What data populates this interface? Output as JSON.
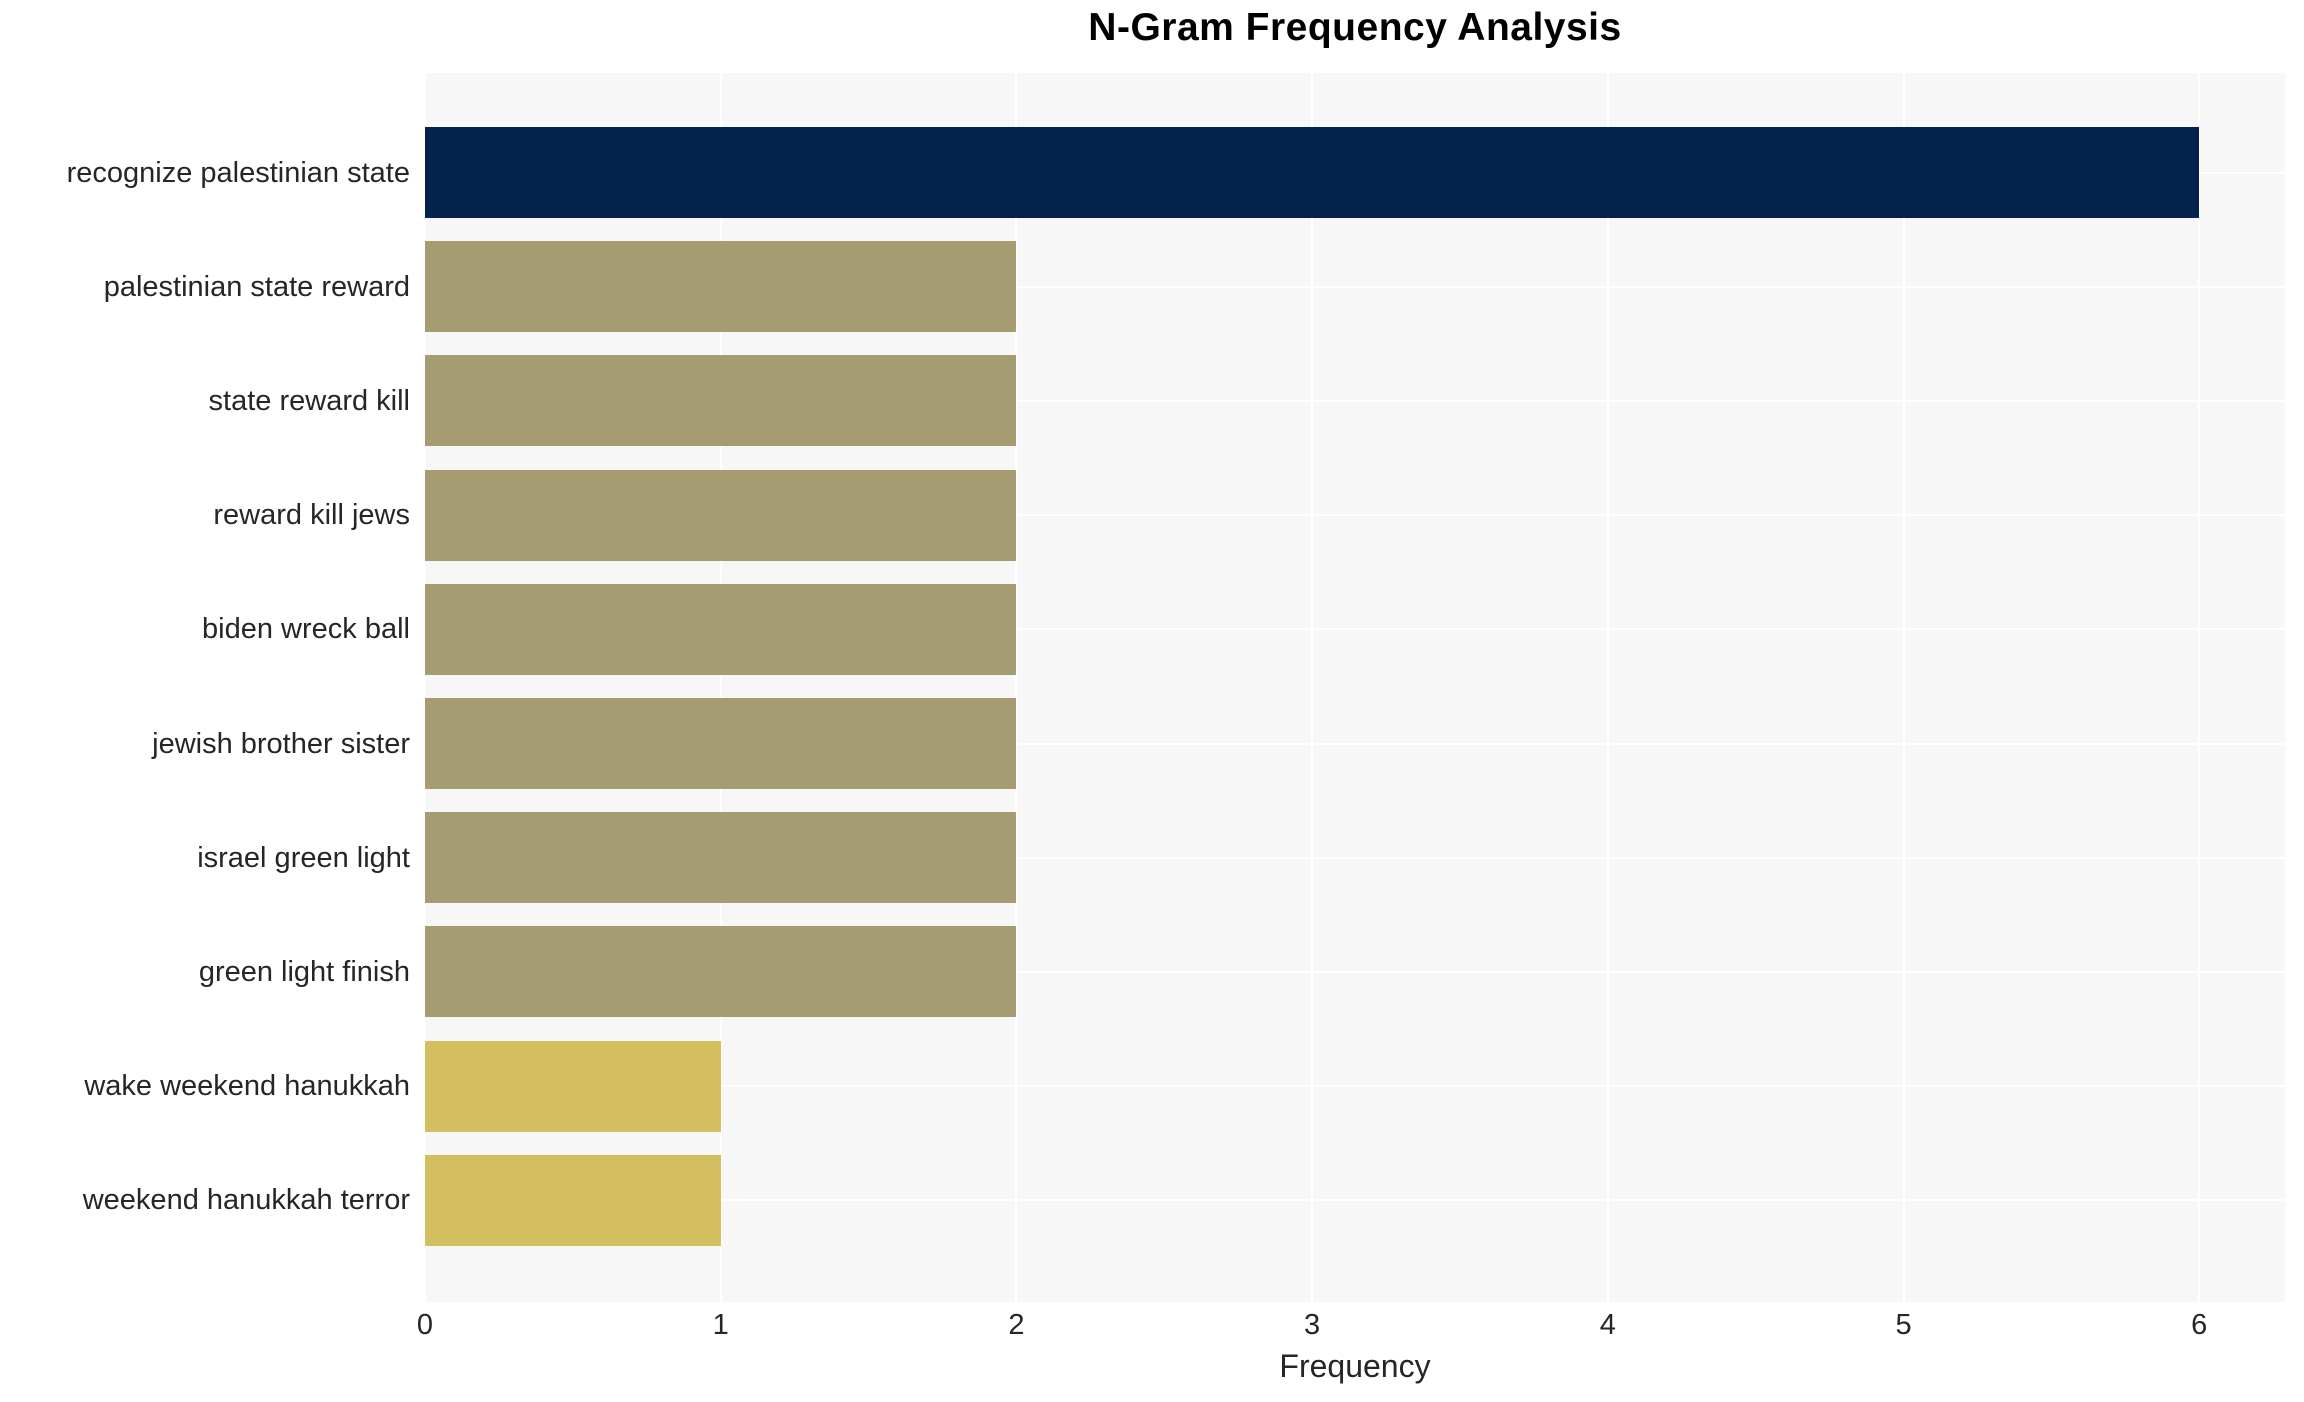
{
  "chart_data": {
    "type": "bar",
    "orientation": "horizontal",
    "title": "N-Gram Frequency Analysis",
    "xlabel": "Frequency",
    "ylabel": "",
    "categories": [
      "recognize palestinian state",
      "palestinian state reward",
      "state reward kill",
      "reward kill jews",
      "biden wreck ball",
      "jewish brother sister",
      "israel green light",
      "green light finish",
      "wake weekend hanukkah",
      "weekend hanukkah terror"
    ],
    "values": [
      6,
      2,
      2,
      2,
      2,
      2,
      2,
      2,
      1,
      1
    ],
    "bar_colors": [
      "#03234c",
      "#a59c71",
      "#a59c71",
      "#a59c71",
      "#a59c71",
      "#a59c71",
      "#a59c71",
      "#a59c71",
      "#d3bf5f",
      "#d3bf5f"
    ],
    "x_ticks": [
      "0",
      "1",
      "2",
      "3",
      "4",
      "5",
      "6"
    ],
    "xlim": [
      0,
      6.29
    ],
    "grid": true,
    "legend": false,
    "plot_bg_color": "#f7f7f7",
    "grid_color": "#ffffff"
  }
}
